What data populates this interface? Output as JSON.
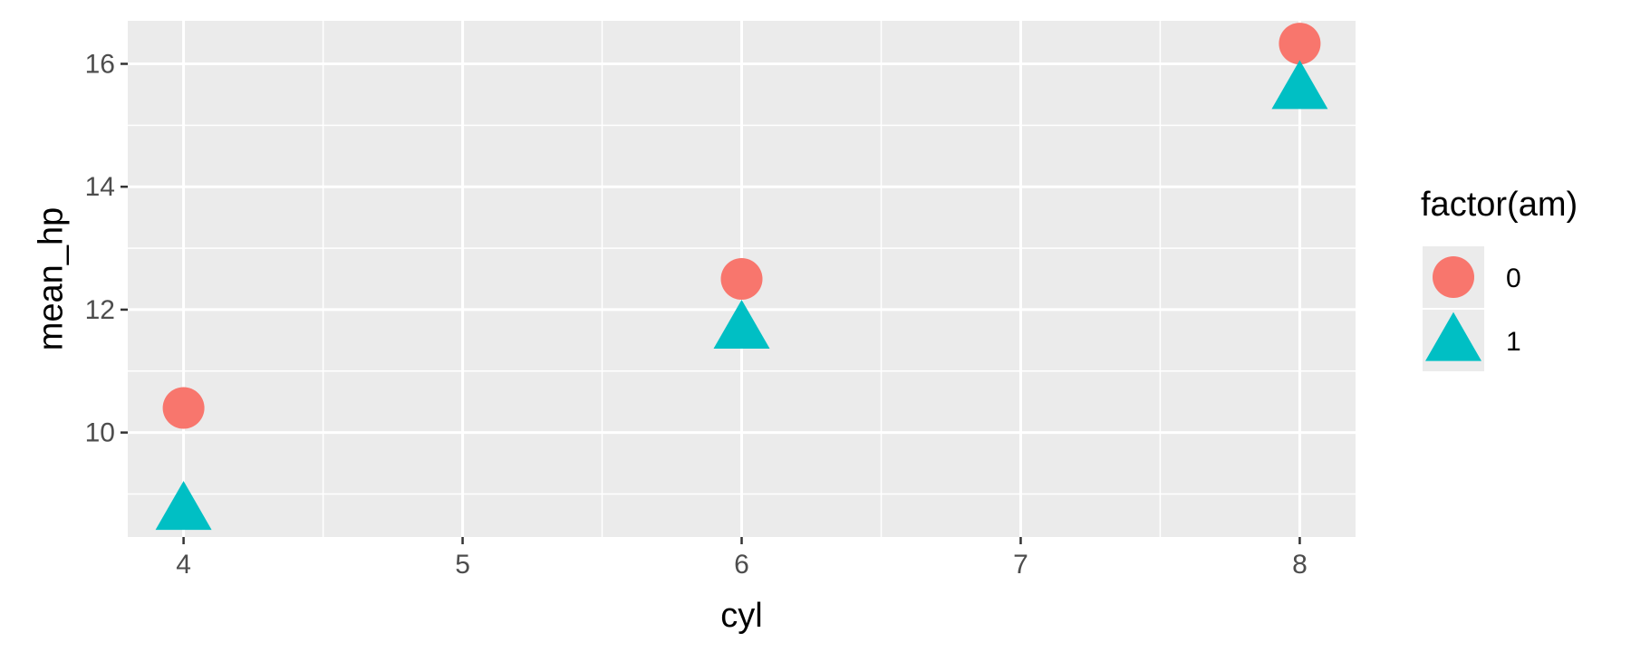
{
  "chart_data": {
    "type": "scatter",
    "title": "",
    "xlabel": "cyl",
    "ylabel": "mean_hp",
    "xlim": [
      3.8,
      8.2
    ],
    "ylim": [
      8.3,
      16.7
    ],
    "x_ticks": [
      4,
      5,
      6,
      7,
      8
    ],
    "x_tick_labels": [
      "4",
      "5",
      "6",
      "7",
      "8"
    ],
    "y_ticks": [
      10,
      12,
      14,
      16
    ],
    "y_tick_labels": [
      "10",
      "12",
      "14",
      "16"
    ],
    "x_minor": [
      4.5,
      5.5,
      6.5,
      7.5
    ],
    "y_minor": [
      9,
      11,
      13,
      15
    ],
    "grid": true,
    "legend": {
      "title": "factor(am)",
      "position": "right",
      "entries": [
        {
          "label": "0",
          "shape": "circle",
          "color": "#F8766D"
        },
        {
          "label": "1",
          "shape": "triangle",
          "color": "#00BFC4"
        }
      ]
    },
    "series": [
      {
        "name": "0",
        "shape": "circle",
        "color": "#F8766D",
        "points": [
          {
            "x": 4,
            "y": 10.4
          },
          {
            "x": 6,
            "y": 12.5
          },
          {
            "x": 8,
            "y": 16.33
          }
        ]
      },
      {
        "name": "1",
        "shape": "triangle",
        "color": "#00BFC4",
        "points": [
          {
            "x": 4,
            "y": 8.75
          },
          {
            "x": 6,
            "y": 11.7
          },
          {
            "x": 8,
            "y": 15.6
          }
        ]
      }
    ],
    "colors": {
      "panel_background": "#EBEBEB",
      "grid": "#FFFFFF",
      "tick_text": "#4D4D4D",
      "tick_mark": "#333333"
    }
  }
}
